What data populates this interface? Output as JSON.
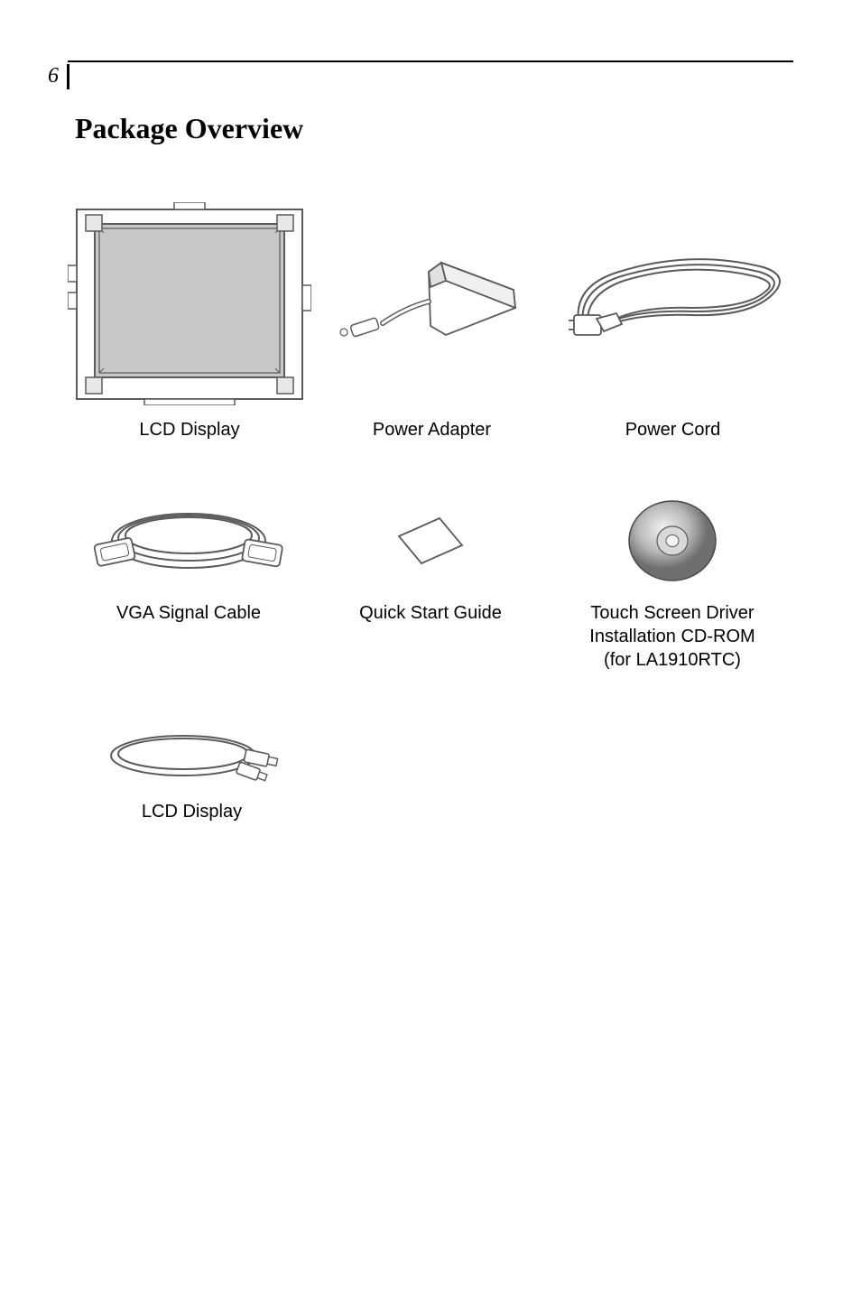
{
  "pageNumber": "6",
  "title": "Package Overview",
  "items": [
    {
      "label": "LCD Display"
    },
    {
      "label": "Power Adapter"
    },
    {
      "label": "Power Cord"
    },
    {
      "label": "VGA Signal Cable"
    },
    {
      "label": "Quick Start Guide"
    },
    {
      "label": "Touch Screen Driver\nInstallation CD-ROM\n(for LA1910RTC)"
    },
    {
      "label": "LCD Display"
    }
  ],
  "colors": {
    "text": "#000000",
    "line": "#5a5a5a",
    "lightGray": "#d0d0d0",
    "darkGray": "#8a8a8a"
  }
}
